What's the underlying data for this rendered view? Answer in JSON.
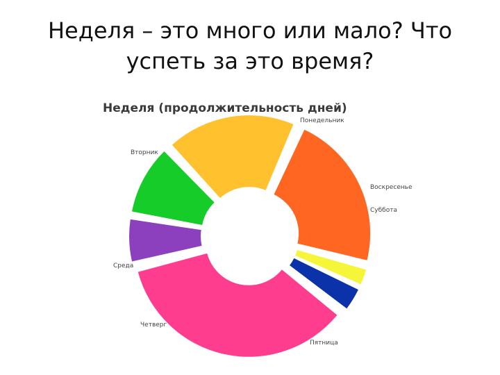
{
  "slide": {
    "title_line1": "Неделя – это много или мало? Что",
    "title_line2": "успеть за это время?"
  },
  "chart_data": {
    "type": "pie",
    "donut": true,
    "exploded": true,
    "title": "Неделя (продолжительность дней)",
    "categories": [
      "Понедельник",
      "Воскресенье",
      "Суббота",
      "Пятница",
      "Четверг",
      "Среда",
      "Вторник"
    ],
    "values": [
      24,
      3,
      4,
      38,
      7,
      11,
      20
    ],
    "colors": [
      "#FF6622",
      "#F5F53A",
      "#0B32A8",
      "#FF3D8E",
      "#8C40BE",
      "#16CC28",
      "#FFC12E"
    ],
    "legend": "labels beside slices"
  }
}
